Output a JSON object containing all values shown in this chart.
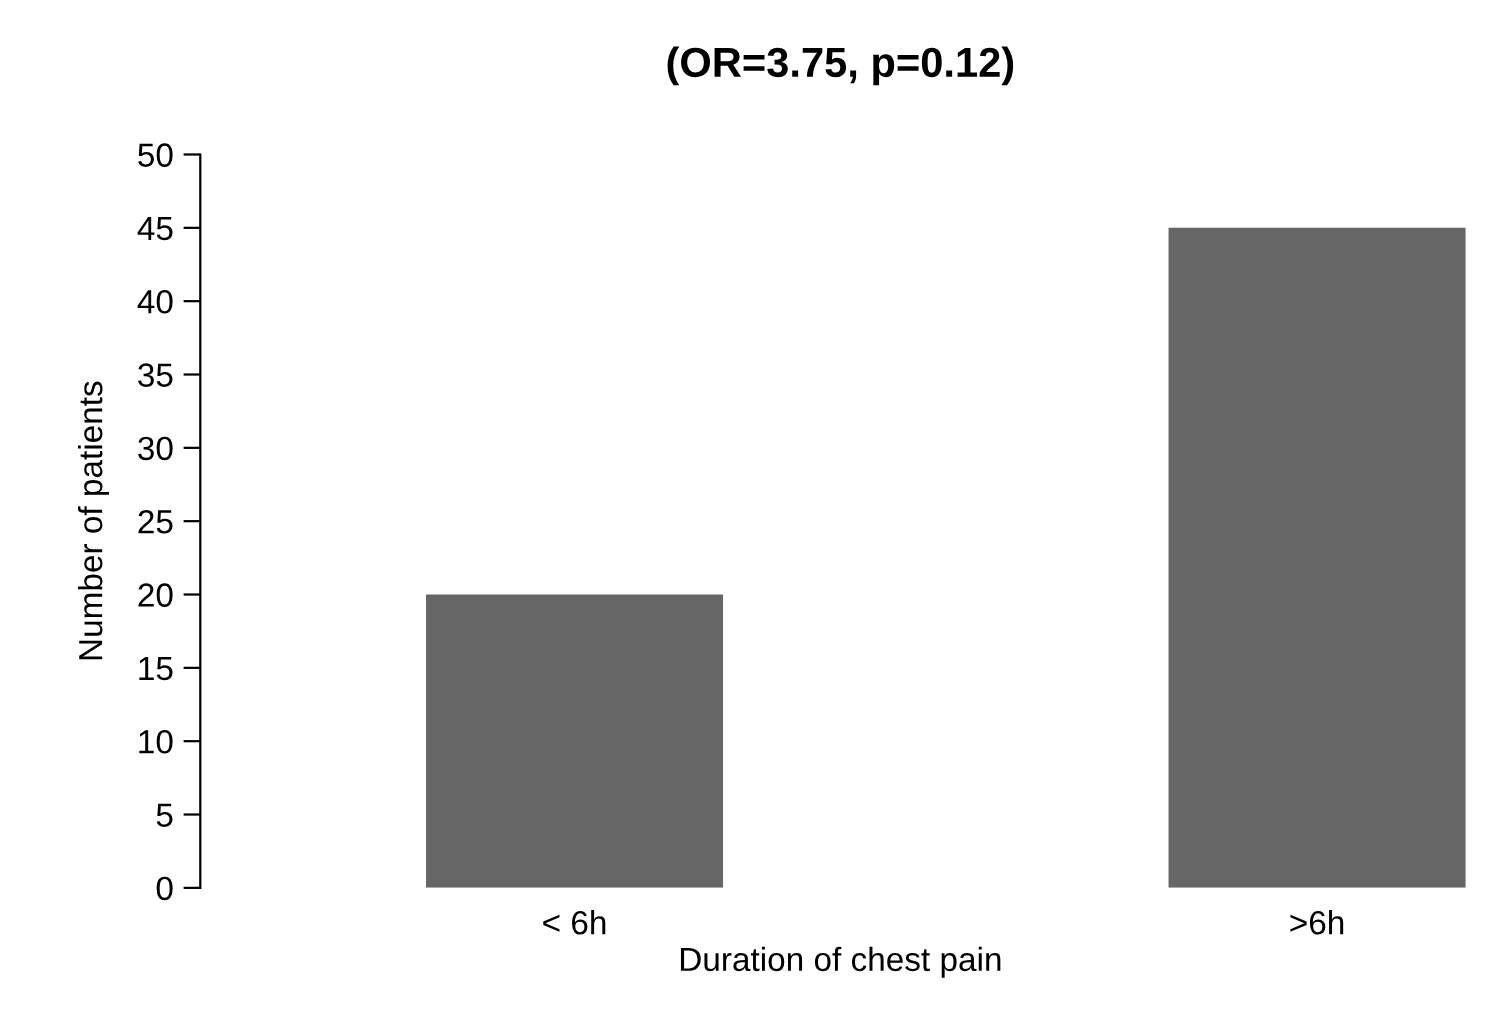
{
  "chart_data": {
    "type": "bar",
    "title": "(OR=3.75, p=0.12)",
    "xlabel": "Duration of chest pain",
    "ylabel": "Number of patients",
    "categories": [
      "< 6h",
      ">6h"
    ],
    "values": [
      20,
      45
    ],
    "color": "#666666",
    "ylim": [
      0,
      50
    ],
    "yticks": [
      0,
      5,
      10,
      15,
      20,
      25,
      30,
      35,
      40,
      45,
      50
    ],
    "grid": false
  }
}
